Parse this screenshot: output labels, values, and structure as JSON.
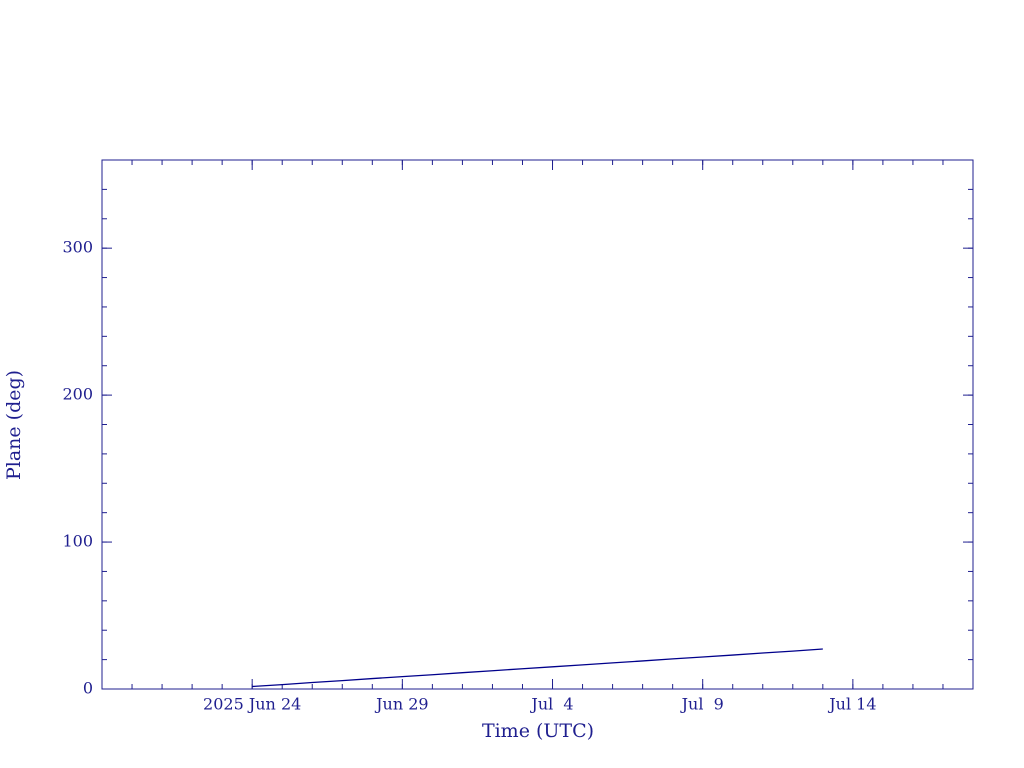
{
  "chart_data": {
    "type": "line",
    "x_label": "Time (UTC)",
    "y_label": "Plane (deg)",
    "x": [
      "2025-06-24",
      "2025-06-25",
      "2025-06-26",
      "2025-06-27",
      "2025-06-28",
      "2025-06-29",
      "2025-06-30",
      "2025-07-01",
      "2025-07-02",
      "2025-07-03",
      "2025-07-04",
      "2025-07-05",
      "2025-07-06",
      "2025-07-07",
      "2025-07-08",
      "2025-07-09",
      "2025-07-10",
      "2025-07-11",
      "2025-07-12",
      "2025-07-13"
    ],
    "series": [
      {
        "color": "#00008b",
        "values": [
          1.7,
          3.0,
          4.4,
          5.7,
          7.1,
          8.4,
          9.7,
          11.1,
          12.4,
          13.8,
          15.1,
          16.4,
          17.8,
          19.1,
          20.5,
          21.8,
          23.1,
          24.5,
          25.8,
          27.2
        ]
      }
    ],
    "xlim": [
      "2025-06-19",
      "2025-07-18"
    ],
    "xticks": [
      {
        "value": "2025-06-24",
        "label": "2025 Jun 24"
      },
      {
        "value": "2025-06-29",
        "label": "Jun 29"
      },
      {
        "value": "2025-07-04",
        "label": "Jul  4"
      },
      {
        "value": "2025-07-09",
        "label": "Jul  9"
      },
      {
        "value": "2025-07-14",
        "label": "Jul 14"
      }
    ],
    "ylim": [
      0,
      360
    ],
    "yticks": [
      0,
      100,
      200,
      300
    ],
    "axis_color": "#1f1f8f"
  }
}
